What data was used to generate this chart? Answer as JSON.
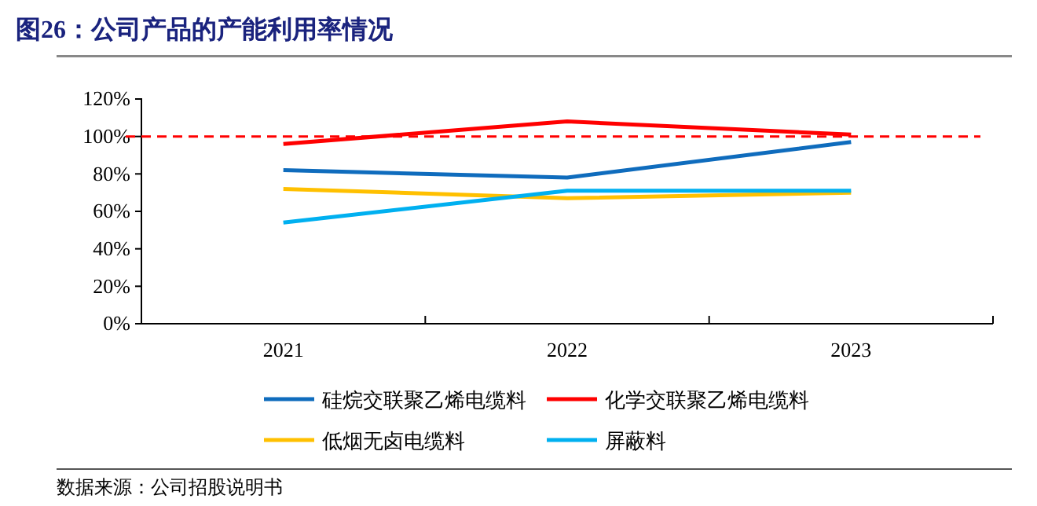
{
  "chart_data": {
    "type": "line",
    "title": "图26：公司产品的产能利用率情况",
    "categories": [
      "2021",
      "2022",
      "2023"
    ],
    "series": [
      {
        "name": "硅烷交联聚乙烯电缆料",
        "color": "#0f6cbd",
        "values": [
          82,
          78,
          97
        ]
      },
      {
        "name": "化学交联聚乙烯电缆料",
        "color": "#ff0000",
        "values": [
          96,
          108,
          101
        ]
      },
      {
        "name": "低烟无卤电缆料",
        "color": "#ffc000",
        "values": [
          72,
          67,
          70
        ]
      },
      {
        "name": "屏蔽料",
        "color": "#00b0f0",
        "values": [
          54,
          71,
          71
        ]
      }
    ],
    "ylim": [
      0,
      120
    ],
    "yticks": [
      {
        "value": 0,
        "label": "0%"
      },
      {
        "value": 20,
        "label": "20%"
      },
      {
        "value": 40,
        "label": "40%"
      },
      {
        "value": 60,
        "label": "60%"
      },
      {
        "value": 80,
        "label": "80%"
      },
      {
        "value": 100,
        "label": "100%"
      },
      {
        "value": 120,
        "label": "120%"
      }
    ],
    "ref_lines": [
      {
        "axis": "y",
        "value": 100,
        "color": "#ff0000",
        "line_style": "dashed"
      }
    ],
    "grid": false,
    "legend": "bottom",
    "marker": "none",
    "line_style": "solid",
    "annotations": [
      "数据来源：公司招股说明书"
    ]
  }
}
